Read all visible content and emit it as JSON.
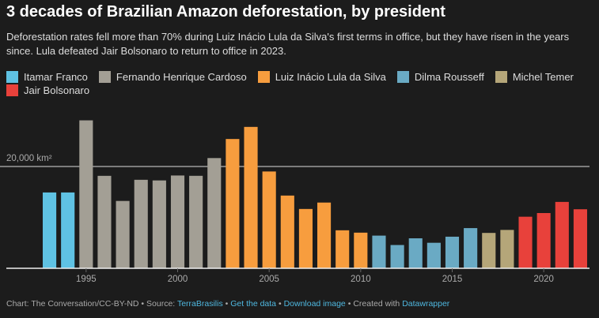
{
  "chart_data": {
    "type": "bar",
    "title": "3 decades of Brazilian Amazon deforestation, by president",
    "subtitle": "Deforestation rates fell more than 70% during Luiz Inácio Lula da Silva's first terms in office, but they have risen in the years since. Lula defeated Jair Bolsonaro to return to office in 2023.",
    "series": [
      {
        "name": "Itamar Franco",
        "color": "#5fc2e3",
        "x": [
          1993,
          1994
        ],
        "values": [
          14896,
          14896
        ]
      },
      {
        "name": "Fernando Henrique Cardoso",
        "color": "#a39f95",
        "x": [
          1995,
          1996,
          1997,
          1998,
          1999,
          2000,
          2001,
          2002
        ],
        "values": [
          29059,
          18161,
          13227,
          17383,
          17259,
          18226,
          18165,
          21651
        ]
      },
      {
        "name": "Luiz Inácio Lula da Silva",
        "color": "#f79d3e",
        "x": [
          2003,
          2004,
          2005,
          2006,
          2007,
          2008,
          2009,
          2010
        ],
        "values": [
          25396,
          27772,
          19014,
          14286,
          11651,
          12911,
          7464,
          7000
        ]
      },
      {
        "name": "Dilma Rousseff",
        "color": "#6aaac4",
        "x": [
          2011,
          2012,
          2013,
          2014,
          2015,
          2016
        ],
        "values": [
          6418,
          4571,
          5891,
          5012,
          6207,
          7893
        ]
      },
      {
        "name": "Michel Temer",
        "color": "#b5a679",
        "x": [
          2017,
          2018
        ],
        "values": [
          6947,
          7536
        ]
      },
      {
        "name": "Jair Bolsonaro",
        "color": "#e8413b",
        "x": [
          2019,
          2020,
          2021,
          2022
        ],
        "values": [
          10129,
          10851,
          13038,
          11594
        ]
      }
    ],
    "xlim": [
      1992.5,
      2022.5
    ],
    "xticks": [
      1995,
      2000,
      2005,
      2010,
      2015,
      2020
    ],
    "ylim": [
      0,
      31000
    ],
    "yticks": [
      {
        "value": 20000,
        "label": "20,000 km²"
      }
    ],
    "grid": true
  },
  "footer": {
    "credit": "Chart: The Conversation/CC-BY-ND",
    "separator": "•",
    "source_label": "Source:",
    "source": "TerraBrasilis",
    "links": [
      "Get the data",
      "Download image"
    ],
    "created": "Created with",
    "tool": "Datawrapper"
  }
}
